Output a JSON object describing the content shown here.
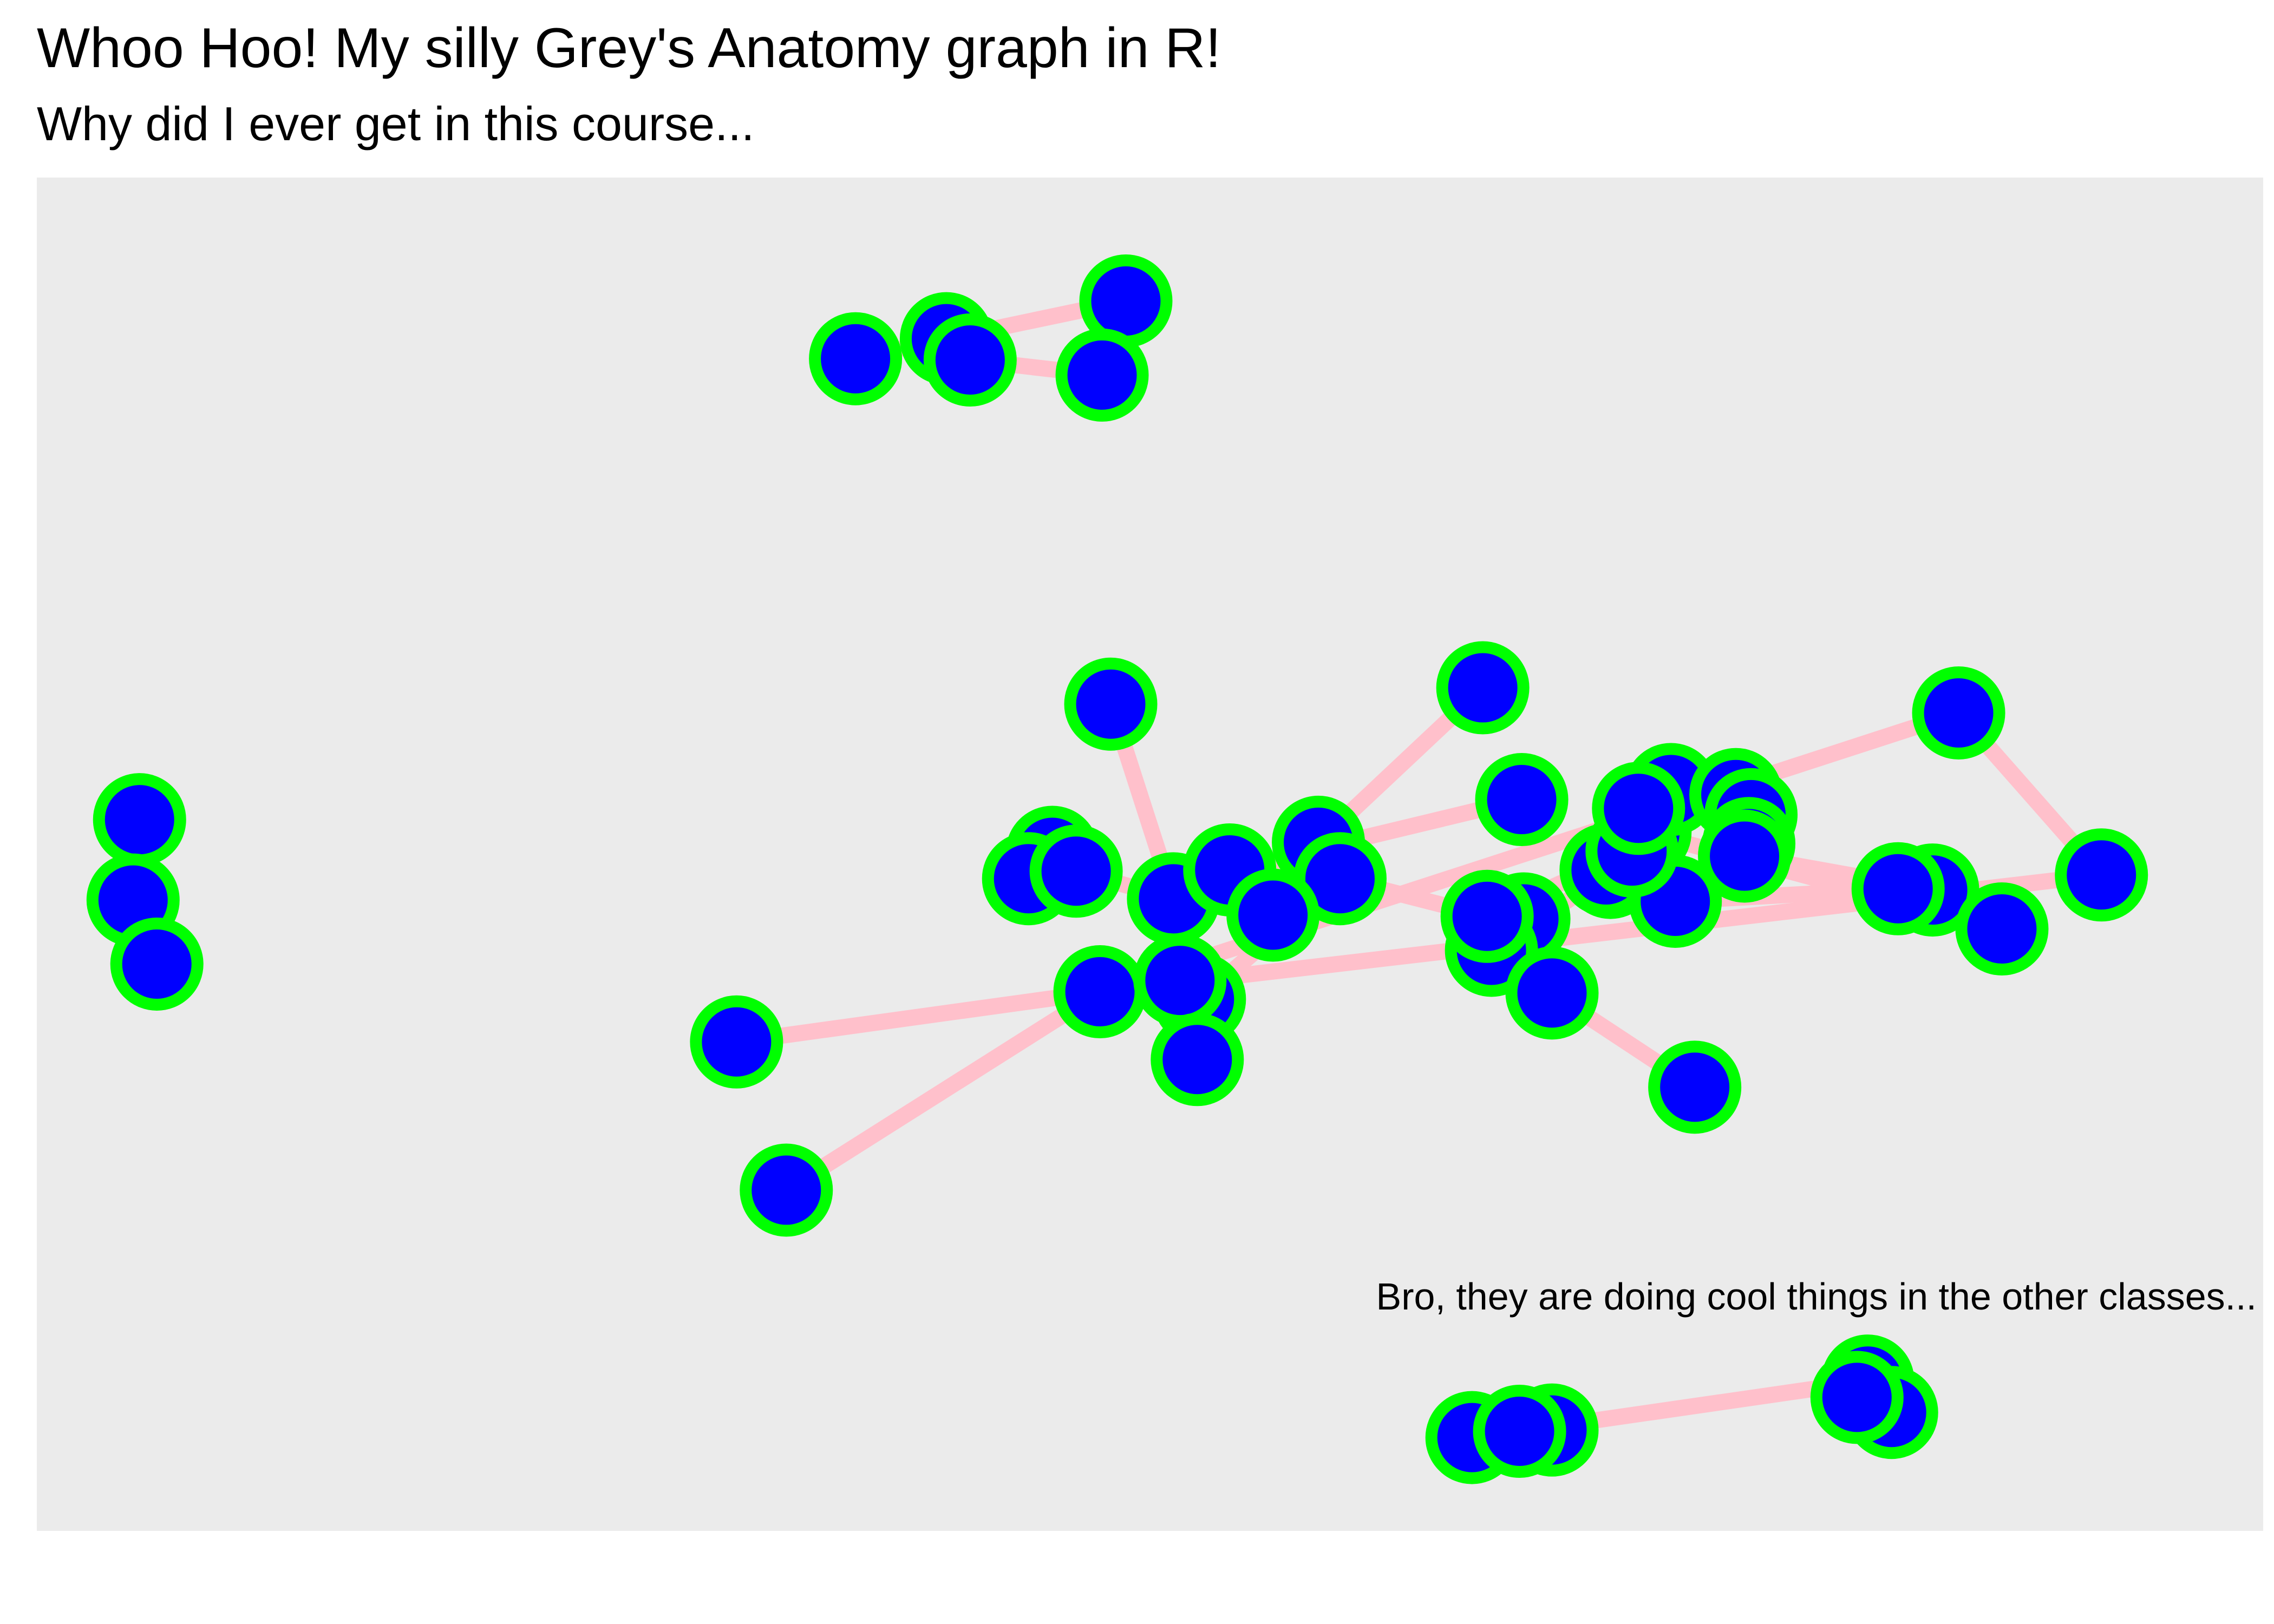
{
  "title": "Whoo Hoo! My silly Grey's Anatomy graph in R!",
  "subtitle": "Why did I ever get in this course...",
  "caption": "Bro, they are doing cool things in the other classes...",
  "colors": {
    "panel_background": "#ebebeb",
    "edge": "#ffc0cb",
    "node_fill": "#0000ff",
    "node_outline": "#00ff00"
  },
  "chart_data": {
    "type": "network",
    "axes": "none",
    "grid": false,
    "legend": "none",
    "x_range": [
      0,
      1
    ],
    "y_range": [
      0,
      1
    ],
    "nodes": [
      {
        "x": 0.378,
        "y": 0.904
      },
      {
        "x": 0.42,
        "y": 0.92
      },
      {
        "x": 0.431,
        "y": 0.903
      },
      {
        "x": 0.503,
        "y": 0.95
      },
      {
        "x": 0.492,
        "y": 0.891
      },
      {
        "x": 0.047,
        "y": 0.537
      },
      {
        "x": 0.044,
        "y": 0.473
      },
      {
        "x": 0.055,
        "y": 0.422
      },
      {
        "x": 0.496,
        "y": 0.629
      },
      {
        "x": 0.469,
        "y": 0.511
      },
      {
        "x": 0.458,
        "y": 0.49
      },
      {
        "x": 0.48,
        "y": 0.496
      },
      {
        "x": 0.525,
        "y": 0.474
      },
      {
        "x": 0.551,
        "y": 0.497
      },
      {
        "x": 0.592,
        "y": 0.519
      },
      {
        "x": 0.602,
        "y": 0.49
      },
      {
        "x": 0.571,
        "y": 0.461
      },
      {
        "x": 0.491,
        "y": 0.4
      },
      {
        "x": 0.537,
        "y": 0.394
      },
      {
        "x": 0.528,
        "y": 0.409
      },
      {
        "x": 0.323,
        "y": 0.36
      },
      {
        "x": 0.346,
        "y": 0.242
      },
      {
        "x": 0.536,
        "y": 0.346
      },
      {
        "x": 0.668,
        "y": 0.642
      },
      {
        "x": 0.686,
        "y": 0.553
      },
      {
        "x": 0.687,
        "y": 0.458
      },
      {
        "x": 0.672,
        "y": 0.433
      },
      {
        "x": 0.67,
        "y": 0.46
      },
      {
        "x": 0.7,
        "y": 0.399
      },
      {
        "x": 0.766,
        "y": 0.324
      },
      {
        "x": 0.727,
        "y": 0.495
      },
      {
        "x": 0.743,
        "y": 0.527
      },
      {
        "x": 0.725,
        "y": 0.497
      },
      {
        "x": 0.757,
        "y": 0.472
      },
      {
        "x": 0.737,
        "y": 0.512
      },
      {
        "x": 0.755,
        "y": 0.561
      },
      {
        "x": 0.785,
        "y": 0.557
      },
      {
        "x": 0.792,
        "y": 0.541
      },
      {
        "x": 0.791,
        "y": 0.518
      },
      {
        "x": 0.74,
        "y": 0.546
      },
      {
        "x": 0.789,
        "y": 0.508
      },
      {
        "x": 0.888,
        "y": 0.622
      },
      {
        "x": 0.954,
        "y": 0.493
      },
      {
        "x": 0.876,
        "y": 0.481
      },
      {
        "x": 0.908,
        "y": 0.45
      },
      {
        "x": 0.86,
        "y": 0.482
      },
      {
        "x": 0.663,
        "y": 0.045
      },
      {
        "x": 0.7,
        "y": 0.051
      },
      {
        "x": 0.685,
        "y": 0.05
      },
      {
        "x": 0.846,
        "y": 0.09
      },
      {
        "x": 0.857,
        "y": 0.065
      },
      {
        "x": 0.841,
        "y": 0.077
      }
    ],
    "edges": [
      [
        0,
        1
      ],
      [
        1,
        2
      ],
      [
        1,
        3
      ],
      [
        2,
        4
      ],
      [
        5,
        6
      ],
      [
        6,
        7
      ],
      [
        8,
        12
      ],
      [
        9,
        11
      ],
      [
        11,
        12
      ],
      [
        12,
        22
      ],
      [
        13,
        15
      ],
      [
        13,
        24
      ],
      [
        14,
        23
      ],
      [
        15,
        27
      ],
      [
        15,
        18
      ],
      [
        15,
        16
      ],
      [
        17,
        20
      ],
      [
        17,
        21
      ],
      [
        17,
        41
      ],
      [
        17,
        42
      ],
      [
        18,
        19
      ],
      [
        22,
        19
      ],
      [
        25,
        26
      ],
      [
        26,
        30
      ],
      [
        26,
        27
      ],
      [
        27,
        34
      ],
      [
        28,
        29
      ],
      [
        30,
        31
      ],
      [
        31,
        44
      ],
      [
        32,
        33
      ],
      [
        33,
        45
      ],
      [
        34,
        36
      ],
      [
        35,
        39
      ],
      [
        36,
        37
      ],
      [
        37,
        38
      ],
      [
        38,
        40
      ],
      [
        40,
        43
      ],
      [
        41,
        42
      ],
      [
        43,
        44
      ],
      [
        46,
        47
      ],
      [
        47,
        48
      ],
      [
        48,
        49
      ],
      [
        49,
        50
      ],
      [
        50,
        51
      ]
    ]
  }
}
